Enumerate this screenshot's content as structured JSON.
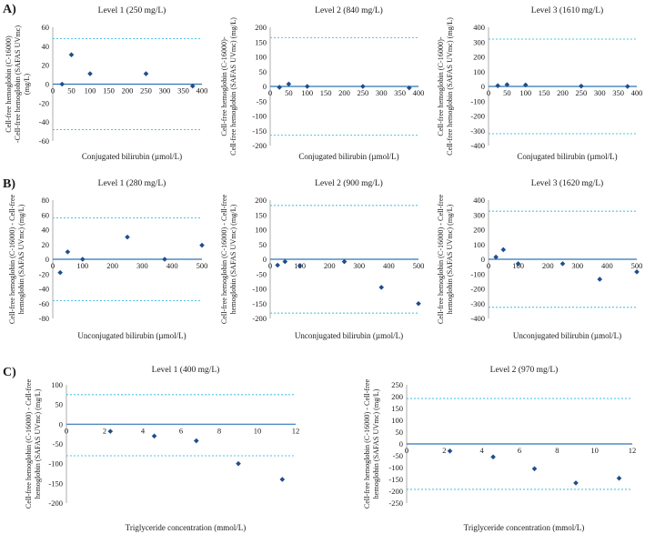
{
  "sections": [
    {
      "label": "A)"
    },
    {
      "label": "B)"
    },
    {
      "label": "C)"
    }
  ],
  "colors": {
    "point": "#1f4e8c",
    "axis": "#2e75b6",
    "limit": "#4fc3e8",
    "text": "#1a1a1a"
  },
  "chart_data": [
    {
      "type": "scatter",
      "title": "Level 1 (250 mg/L)",
      "xlabel": "Conjugated bilirubin (µmol/L)",
      "ylabel_lines": [
        "Cell-free hemoglobin (C-16000)",
        "-Cell-free hemoglobin (SAFAS UVmc)",
        "(mg/L)"
      ],
      "xlim": [
        0,
        400
      ],
      "ylim": [
        -60,
        60
      ],
      "xticks": [
        "0",
        "50",
        "100",
        "150",
        "200",
        "250",
        "300",
        "350",
        "400"
      ],
      "yticks": [
        "60",
        "40",
        "20",
        "0",
        "-20",
        "-40",
        "-60"
      ],
      "limits": [
        48,
        -48
      ],
      "x": [
        25,
        50,
        100,
        250,
        375
      ],
      "y": [
        0,
        31,
        11,
        11,
        -2
      ],
      "grid": false,
      "legend": "none"
    },
    {
      "type": "scatter",
      "title": "Level 2 (840 mg/L)",
      "xlabel": "Conjugated bilirubin (µmol/L)",
      "ylabel_lines": [
        "Cell-free hemoglobin (C-16000)-",
        "Cell-free hemoglobin (SAFAS UVmc) (mg/L)"
      ],
      "xlim": [
        0,
        400
      ],
      "ylim": [
        -200,
        200
      ],
      "xticks": [
        "0",
        "50",
        "100",
        "150",
        "200",
        "250",
        "300",
        "350",
        "400"
      ],
      "yticks": [
        "200",
        "150",
        "100",
        "50",
        "0",
        "-50",
        "-100",
        "-150",
        "-200"
      ],
      "limits": [
        165,
        -165
      ],
      "x": [
        25,
        50,
        100,
        250,
        375
      ],
      "y": [
        -3,
        8,
        0,
        0,
        -5
      ],
      "grid": false,
      "legend": "none"
    },
    {
      "type": "scatter",
      "title": "Level 3 (1610 mg/L)",
      "xlabel": "Conjugated bilirubin (µmol/L)",
      "ylabel_lines": [
        "Cell-free hemoglobin (C-16000)-",
        "Cell-free hemoglobin (SAFAS UVmc) (mg/L)"
      ],
      "xlim": [
        0,
        400
      ],
      "ylim": [
        -400,
        400
      ],
      "xticks": [
        "0",
        "50",
        "100",
        "150",
        "200",
        "250",
        "300",
        "350",
        "400"
      ],
      "yticks": [
        "400",
        "300",
        "200",
        "100",
        "0",
        "-100",
        "-200",
        "-300",
        "-400"
      ],
      "limits": [
        320,
        -320
      ],
      "x": [
        25,
        50,
        100,
        250,
        375
      ],
      "y": [
        5,
        12,
        10,
        2,
        0
      ],
      "grid": false,
      "legend": "none"
    },
    {
      "type": "scatter",
      "title": "Level 1 (280 mg/L)",
      "xlabel": "Unconjugated bilirubin (µmol/L)",
      "ylabel_lines": [
        "Cell-free hemoglobin (C-16000) - Cell-free",
        "hemoglobin (SAFAS UVmc) (mg/L)"
      ],
      "xlim": [
        0,
        500
      ],
      "ylim": [
        -80,
        80
      ],
      "xticks": [
        "0",
        "100",
        "200",
        "300",
        "400",
        "500"
      ],
      "yticks": [
        "80",
        "60",
        "40",
        "20",
        "0",
        "-20",
        "-40",
        "-60",
        "-80"
      ],
      "limits": [
        56,
        -56
      ],
      "x": [
        25,
        50,
        100,
        250,
        375,
        500
      ],
      "y": [
        -18,
        10,
        0,
        30,
        0,
        19
      ],
      "grid": false,
      "legend": "none"
    },
    {
      "type": "scatter",
      "title": "Level 2 (900 mg/L)",
      "xlabel": "Unconjugated bilirubin (µmol/L)",
      "ylabel_lines": [
        "Cell-free hemoglobin (C-16000) - Cell-free",
        "hemoglobin (SAFAS UVmc) (mg/L)"
      ],
      "xlim": [
        0,
        500
      ],
      "ylim": [
        -200,
        200
      ],
      "xticks": [
        "0",
        "100",
        "200",
        "300",
        "400",
        "500"
      ],
      "yticks": [
        "200",
        "150",
        "100",
        "50",
        "0",
        "-50",
        "-100",
        "-150",
        "-200"
      ],
      "limits": [
        182,
        -182
      ],
      "x": [
        25,
        50,
        100,
        250,
        375,
        500
      ],
      "y": [
        -20,
        -8,
        -22,
        -8,
        -95,
        -150
      ],
      "grid": false,
      "legend": "none"
    },
    {
      "type": "scatter",
      "title": "Level 3 (1620 mg/L)",
      "xlabel": "Unconjugated bilirubin (µmol/L)",
      "ylabel_lines": [
        "Cell-free hemoglobin (C-16000) - Cell-free",
        "hemoglobin (SAFAS UVmc) (mg/L)"
      ],
      "xlim": [
        0,
        500
      ],
      "ylim": [
        -400,
        400
      ],
      "xticks": [
        "0",
        "100",
        "200",
        "300",
        "400",
        "500"
      ],
      "yticks": [
        "400",
        "300",
        "200",
        "100",
        "0",
        "-100",
        "-200",
        "-300",
        "-400"
      ],
      "limits": [
        325,
        -325
      ],
      "x": [
        25,
        50,
        100,
        250,
        375,
        500
      ],
      "y": [
        15,
        65,
        -30,
        -30,
        -135,
        -85
      ],
      "grid": false,
      "legend": "none"
    },
    {
      "type": "scatter",
      "title": "Level 1 (400 mg/L)",
      "xlabel": "Triglyceride concentration (mmol/L)",
      "ylabel_lines": [
        "Cell-free hemoglobin (C-16000) - Cell-free",
        "hemoglobin (SAFAS UVmc) (mg/L)"
      ],
      "xlim": [
        0,
        12
      ],
      "ylim": [
        -200,
        100
      ],
      "xticks": [
        "0",
        "2",
        "4",
        "6",
        "8",
        "10",
        "12"
      ],
      "yticks": [
        "100",
        "50",
        "0",
        "-50",
        "-100",
        "-150",
        "-200"
      ],
      "limits": [
        75,
        -80
      ],
      "x": [
        2.3,
        4.6,
        6.8,
        9.0,
        11.3
      ],
      "y": [
        -18,
        -30,
        -42,
        -100,
        -140
      ],
      "grid": false,
      "legend": "none"
    },
    {
      "type": "scatter",
      "title": "Level 2 (970 mg/L)",
      "xlabel": "Triglyceride concentration (mmol/L)",
      "ylabel_lines": [
        "Cell-free hemoglobin (C-16000) - Cell-free",
        "hemoglobin (SAFAS UVmc) (mg/L)"
      ],
      "xlim": [
        0,
        12
      ],
      "ylim": [
        -250,
        250
      ],
      "xticks": [
        "0",
        "2",
        "4",
        "6",
        "8",
        "10",
        "12"
      ],
      "yticks": [
        "250",
        "200",
        "150",
        "100",
        "50",
        "0",
        "-50",
        "-100",
        "-150",
        "-200",
        "-250"
      ],
      "limits": [
        192,
        -192
      ],
      "x": [
        2.3,
        4.6,
        6.8,
        9.0,
        11.3
      ],
      "y": [
        -30,
        -55,
        -105,
        -165,
        -145
      ],
      "grid": false,
      "legend": "none"
    }
  ]
}
